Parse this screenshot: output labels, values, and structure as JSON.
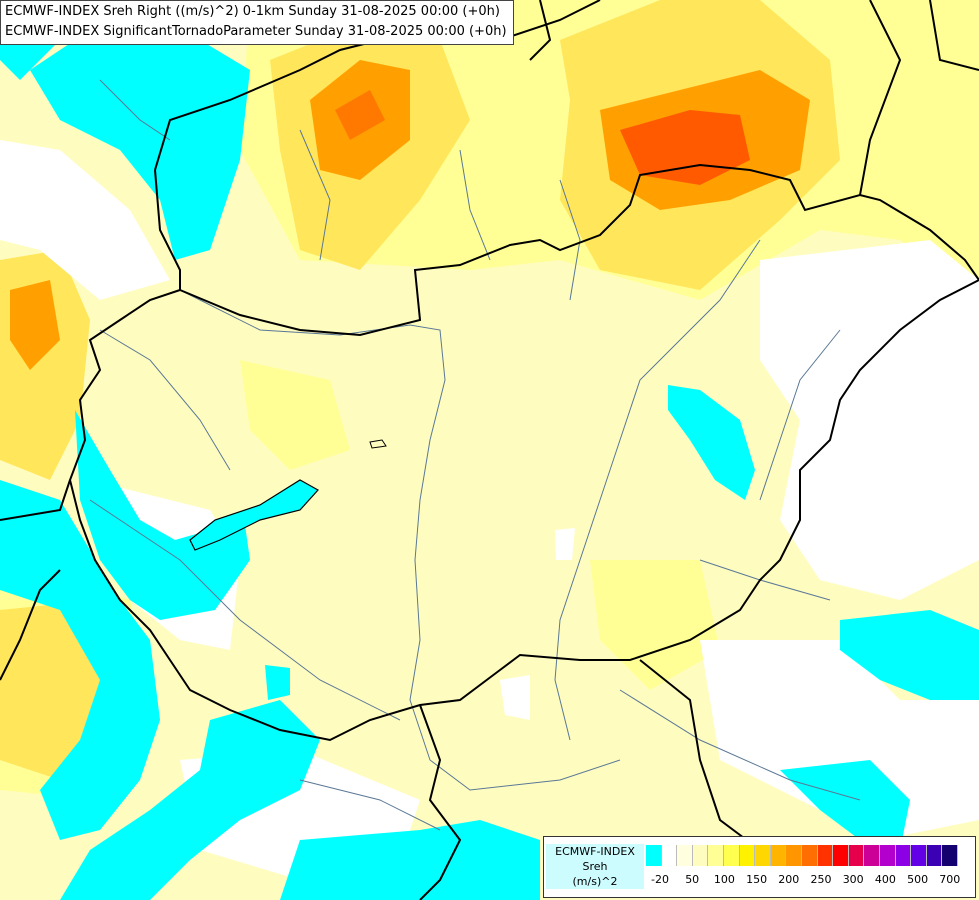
{
  "titles": {
    "line1": "ECMWF-INDEX Sreh Right ((m/s)^2) 0-1km Sunday 31-08-2025 00:00 (+0h)",
    "line2": "ECMWF-INDEX SignificantTornadoParameter Sunday 31-08-2025 00:00 (+0h)"
  },
  "legend": {
    "title_lines": [
      "ECMWF-INDEX",
      "Sreh",
      "(m/s)^2"
    ],
    "colors": [
      "#00ffff",
      "#ffffff",
      "#ffffe0",
      "#fffcc0",
      "#ffff96",
      "#ffff50",
      "#fff200",
      "#ffd700",
      "#ffb400",
      "#ff9600",
      "#ff6e00",
      "#ff3200",
      "#ff0000",
      "#e6004b",
      "#cc0096",
      "#b400cc",
      "#8c00e6",
      "#6400e6",
      "#3c00b4",
      "#14006e"
    ],
    "tick_labels": [
      "-20",
      "50",
      "100",
      "150",
      "200",
      "250",
      "300",
      "400",
      "500",
      "700"
    ]
  },
  "palette": {
    "cyan": "#00ffff",
    "white": "#ffffff",
    "pale_yellow": "#fffcc0",
    "light_yellow": "#ffff96",
    "yellow": "#ffe65a",
    "gold": "#ffd700",
    "orange": "#ffa000",
    "red_orange": "#ff5a00",
    "border": "#000000",
    "river": "#5a7896"
  }
}
